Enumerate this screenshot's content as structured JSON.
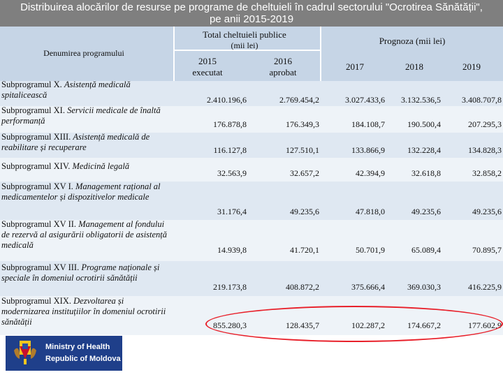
{
  "title": {
    "line1": "Distribuirea alocărilor de resurse pe programe de cheltuieli în cadrul sectorului \"Ocrotirea Sănătății\",",
    "line2": "pe anii 2015-2019"
  },
  "header": {
    "program_col": "Denumirea programului",
    "public_spending": "Total cheltuieli publice",
    "public_spending_unit": "(mii lei)",
    "col_2015": "2015",
    "col_2015_sub": "executat",
    "col_2016": "2016",
    "col_2016_sub": "aprobat",
    "forecast": "Prognoza (mii lei)",
    "col_2017": "2017",
    "col_2018": "2018",
    "col_2019": "2019"
  },
  "rows": [
    {
      "prefix": "Subprogramul X. ",
      "name": "Asistență medicală spitalicească",
      "v2015": "2.410.196,6",
      "v2016": "2.769.454,2",
      "v2017": "3.027.433,6",
      "v2018": "3.132.536,5",
      "v2019": "3.408.707,8"
    },
    {
      "prefix": "Subprogramul XI. ",
      "name": "Servicii medicale de înaltă performanță",
      "v2015": "176.878,8",
      "v2016": "176.349,3",
      "v2017": "184.108,7",
      "v2018": "190.500,4",
      "v2019": "207.295,3"
    },
    {
      "prefix": "Subprogramul XIII. ",
      "name": "Asistență medicală de reabilitare și recuperare",
      "v2015": "116.127,8",
      "v2016": "127.510,1",
      "v2017": "133.866,9",
      "v2018": "132.228,4",
      "v2019": "134.828,3"
    },
    {
      "prefix": "Subprogramul XIV. ",
      "name": "Medicină legală",
      "v2015": "32.563,9",
      "v2016": "32.657,2",
      "v2017": "42.394,9",
      "v2018": "32.618,8",
      "v2019": "32.858,2"
    },
    {
      "prefix": "Subprogramul XV I. ",
      "name": "Management rațional al medicamentelor și dispozitivelor medicale",
      "v2015": "31.176,4",
      "v2016": "49.235,6",
      "v2017": "47.818,0",
      "v2018": "49.235,6",
      "v2019": "49.235,6"
    },
    {
      "prefix": "Subprogramul XV II. ",
      "name": "Management al fondului de rezervă al asigurării obligatorii de asistență medicală",
      "v2015": "14.939,8",
      "v2016": "41.720,1",
      "v2017": "50.701,9",
      "v2018": "65.089,4",
      "v2019": "70.895,7"
    },
    {
      "prefix": "Subprogramul XV III. ",
      "name": "Programe naționale și speciale în domeniul ocrotirii sănătății",
      "v2015": "219.173,8",
      "v2016": "408.872,2",
      "v2017": "375.666,4",
      "v2018": "369.030,3",
      "v2019": "416.225,9"
    },
    {
      "prefix": "Subprogramul XIX. ",
      "name": "Dezvoltarea și modernizarea instituțiilor în domeniul ocrotirii sănătății",
      "v2015": "855.280,3",
      "v2016": "128.435,7",
      "v2017": "102.287,2",
      "v2018": "174.667,2",
      "v2019": "177.602,9"
    }
  ],
  "logo": {
    "line1": "Ministry of Health",
    "line2": "Republic of Moldova"
  },
  "colors": {
    "title_bg": "#7f7f7f",
    "header_bg": "#c6d5e6",
    "highlight": "#e8202a",
    "logo_bg": "#1f3f8a"
  }
}
